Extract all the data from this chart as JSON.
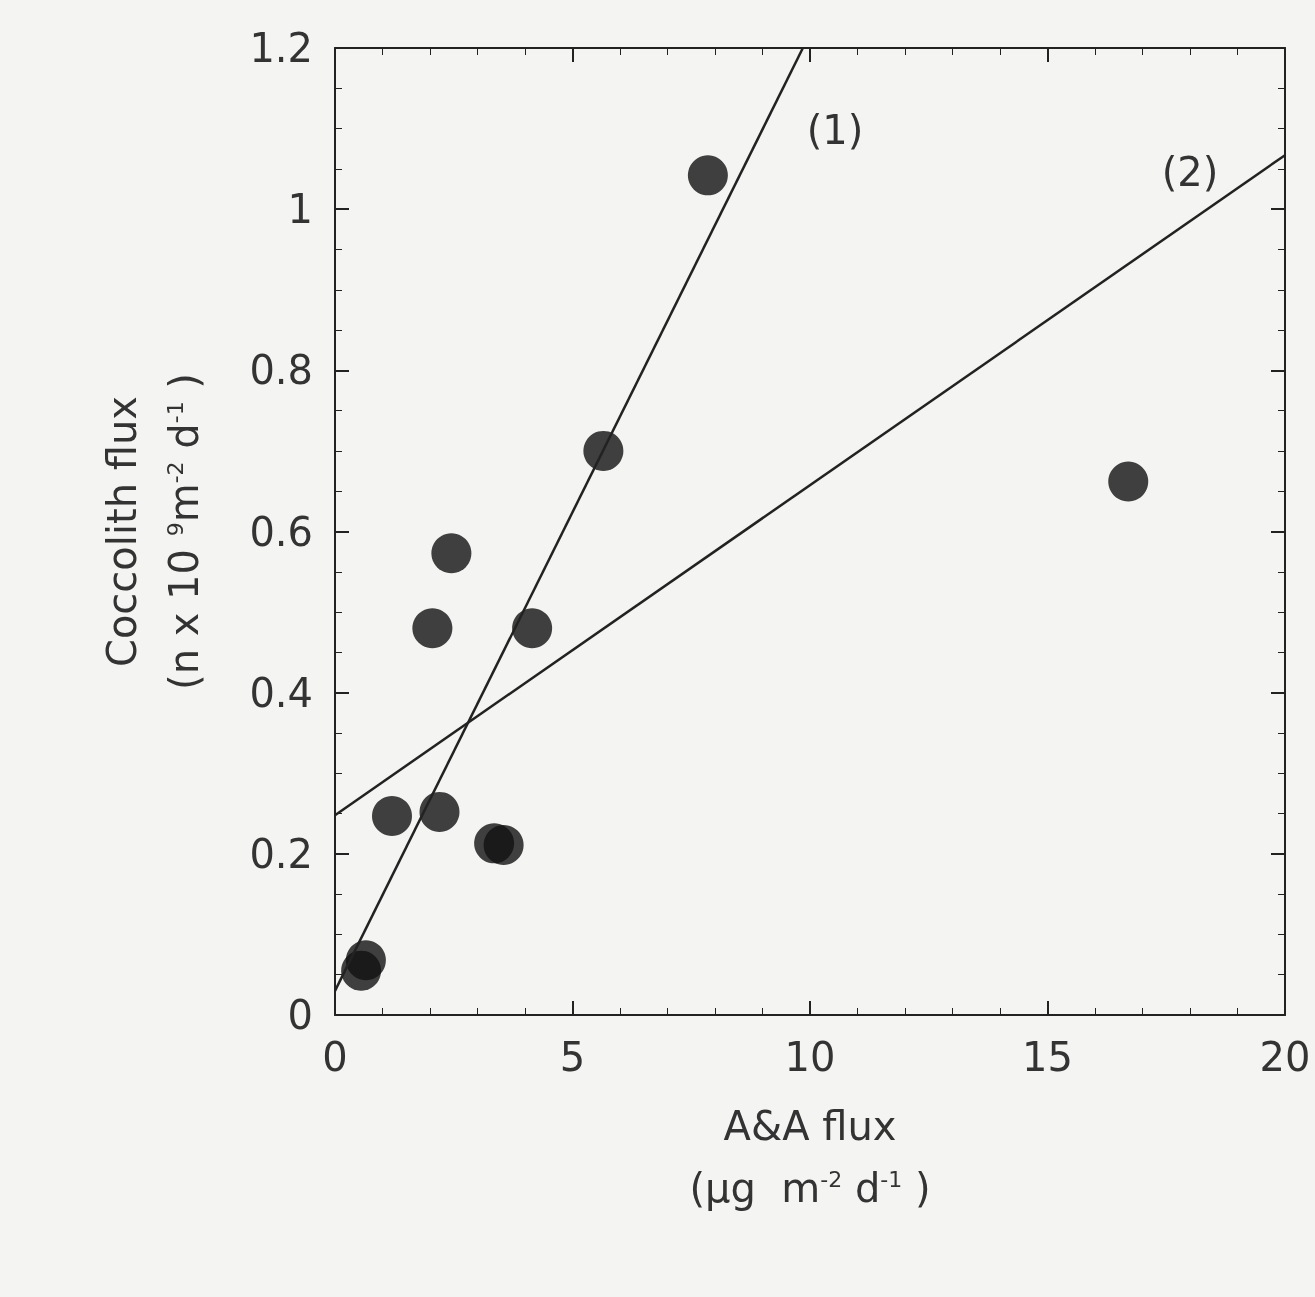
{
  "chart_data": {
    "type": "scatter",
    "xlabel": "A&A flux\n(μg  m$^{-2}$ d$^{-1}$ )",
    "ylabel": "Coccolith flux\n(n x 10 $^{9}$m$^{-2}$ d$^{-1}$ )",
    "xlim": [
      0,
      20
    ],
    "xticks": [
      0,
      5,
      10,
      15,
      20
    ],
    "ylim": [
      0,
      1.2
    ],
    "yticks": [
      0,
      0.2,
      0.4,
      0.6,
      0.8,
      1,
      1.2
    ],
    "marker": "circle",
    "grid": false,
    "series": [
      {
        "color": "#111111",
        "x": [
          0.55,
          0.65,
          1.2,
          2.2,
          2.05,
          2.45,
          3.35,
          3.55,
          4.15,
          5.65,
          7.85,
          16.7
        ],
        "values": [
          0.055,
          0.068,
          0.247,
          0.252,
          0.48,
          0.573,
          0.213,
          0.211,
          0.48,
          0.7,
          1.042,
          0.662
        ]
      },
      {
        "type": "line",
        "color": "#222222",
        "marker": "none",
        "x": [
          0,
          9.85
        ],
        "values": [
          0.03,
          1.2
        ]
      },
      {
        "type": "line",
        "color": "#222222",
        "marker": "none",
        "x": [
          0,
          20
        ],
        "values": [
          0.248,
          1.067
        ]
      }
    ],
    "annotations": [
      "(1)",
      "(2)"
    ]
  }
}
